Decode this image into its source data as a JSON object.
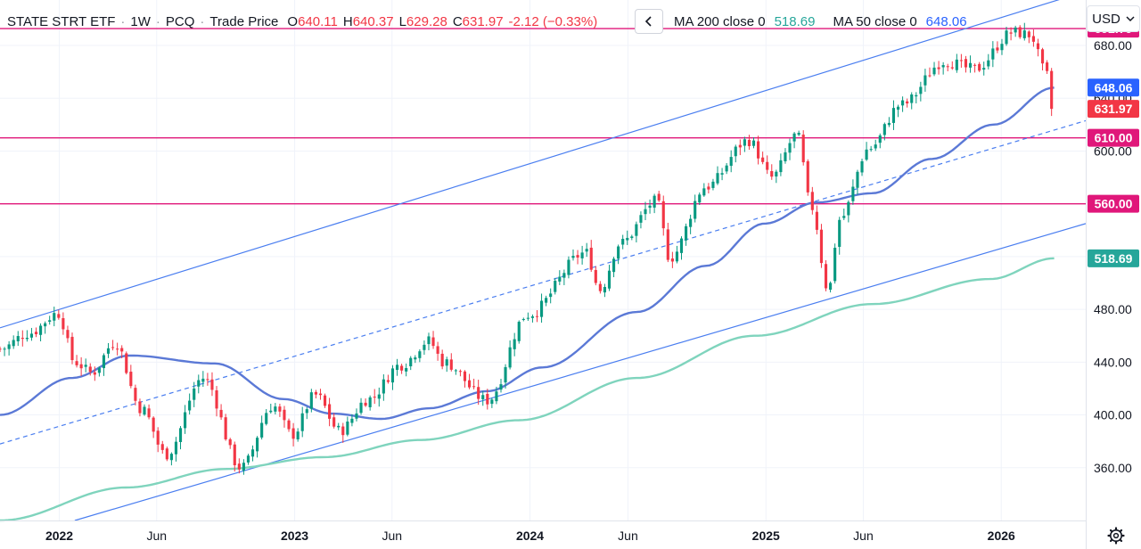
{
  "header": {
    "symbol": "STATE STRT ETF",
    "interval": "1W",
    "exchange": "PCQ",
    "price_type": "Trade Price",
    "sep": "·",
    "o_label": "O",
    "o_value": "640.11",
    "h_label": "H",
    "h_value": "640.37",
    "l_label": "L",
    "l_value": "629.28",
    "c_label": "C",
    "c_value": "631.97",
    "change": "-2.12 (−0.33%)"
  },
  "indicators": {
    "collapse_icon": "chevron-left-icon",
    "ma200_label": "MA 200 close 0",
    "ma200_value": "518.69",
    "ma50_label": "MA 50 close 0",
    "ma50_value": "648.06"
  },
  "currency": {
    "label": "USD",
    "icon": "chevron-down-icon"
  },
  "settings_icon": "gear-icon",
  "colors": {
    "up": "#089981",
    "down": "#f23645",
    "ma50": "#5b79d6",
    "ma200": "#7fd4bd",
    "hline": "#e0177a",
    "trend": "#4a7ef0",
    "grid": "#f0f3fa",
    "axis_text": "#131722"
  },
  "chart_data": {
    "type": "candlestick",
    "interval": "weekly",
    "ylim": [
      320,
      705
    ],
    "xlim": [
      "2021-10-01",
      "2026-05-12"
    ],
    "y_ticks": [
      "360.00",
      "400.00",
      "440.00",
      "480.00",
      "520.00",
      "560.00",
      "600.00",
      "640.00",
      "680.00"
    ],
    "x_ticks": [
      {
        "date": "2022-01-01",
        "label": "2022",
        "bold": true
      },
      {
        "date": "2022-06-01",
        "label": "Jun",
        "bold": false
      },
      {
        "date": "2023-01-01",
        "label": "2023",
        "bold": true
      },
      {
        "date": "2023-06-01",
        "label": "Jun",
        "bold": false
      },
      {
        "date": "2024-01-01",
        "label": "2024",
        "bold": true
      },
      {
        "date": "2024-06-01",
        "label": "Jun",
        "bold": false
      },
      {
        "date": "2025-01-01",
        "label": "2025",
        "bold": true
      },
      {
        "date": "2025-06-01",
        "label": "Jun",
        "bold": false
      },
      {
        "date": "2026-01-01",
        "label": "2026",
        "bold": true
      }
    ],
    "price_anchors": [
      {
        "date": "2021-10-01",
        "close": 450
      },
      {
        "date": "2021-11-15",
        "close": 462
      },
      {
        "date": "2021-12-30",
        "close": 477
      },
      {
        "date": "2022-01-25",
        "close": 440
      },
      {
        "date": "2022-02-20",
        "close": 432
      },
      {
        "date": "2022-03-28",
        "close": 455
      },
      {
        "date": "2022-05-08",
        "close": 405
      },
      {
        "date": "2022-06-15",
        "close": 370
      },
      {
        "date": "2022-08-12",
        "close": 428
      },
      {
        "date": "2022-10-10",
        "close": 360
      },
      {
        "date": "2022-11-28",
        "close": 407
      },
      {
        "date": "2022-12-28",
        "close": 385
      },
      {
        "date": "2023-02-02",
        "close": 415
      },
      {
        "date": "2023-03-12",
        "close": 388
      },
      {
        "date": "2023-04-25",
        "close": 412
      },
      {
        "date": "2023-06-15",
        "close": 438
      },
      {
        "date": "2023-07-28",
        "close": 456
      },
      {
        "date": "2023-08-20",
        "close": 440
      },
      {
        "date": "2023-10-27",
        "close": 411
      },
      {
        "date": "2023-12-28",
        "close": 476
      },
      {
        "date": "2024-03-28",
        "close": 523
      },
      {
        "date": "2024-04-18",
        "close": 495
      },
      {
        "date": "2024-05-20",
        "close": 530
      },
      {
        "date": "2024-07-15",
        "close": 562
      },
      {
        "date": "2024-08-05",
        "close": 519
      },
      {
        "date": "2024-09-30",
        "close": 573
      },
      {
        "date": "2024-12-05",
        "close": 608
      },
      {
        "date": "2025-01-10",
        "close": 580
      },
      {
        "date": "2025-02-18",
        "close": 612
      },
      {
        "date": "2025-03-12",
        "close": 558
      },
      {
        "date": "2025-04-08",
        "close": 495
      },
      {
        "date": "2025-04-25",
        "close": 548
      },
      {
        "date": "2025-06-10",
        "close": 602
      },
      {
        "date": "2025-07-30",
        "close": 635
      },
      {
        "date": "2025-10-05",
        "close": 668
      },
      {
        "date": "2025-11-20",
        "close": 662
      },
      {
        "date": "2026-01-20",
        "close": 690
      },
      {
        "date": "2026-02-15",
        "close": 688
      },
      {
        "date": "2026-03-10",
        "close": 660
      },
      {
        "date": "2026-03-24",
        "close": 631.97
      }
    ],
    "ma50_anchors": [
      {
        "date": "2021-10-01",
        "value": 400
      },
      {
        "date": "2022-01-20",
        "value": 428
      },
      {
        "date": "2022-04-20",
        "value": 445
      },
      {
        "date": "2022-08-30",
        "value": 439
      },
      {
        "date": "2022-12-15",
        "value": 412
      },
      {
        "date": "2023-02-28",
        "value": 401
      },
      {
        "date": "2023-05-15",
        "value": 397
      },
      {
        "date": "2023-07-28",
        "value": 405
      },
      {
        "date": "2023-10-27",
        "value": 418
      },
      {
        "date": "2024-01-20",
        "value": 436
      },
      {
        "date": "2024-06-15",
        "value": 478
      },
      {
        "date": "2024-09-30",
        "value": 513
      },
      {
        "date": "2024-12-30",
        "value": 545
      },
      {
        "date": "2025-03-20",
        "value": 561
      },
      {
        "date": "2025-06-15",
        "value": 568
      },
      {
        "date": "2025-09-15",
        "value": 594
      },
      {
        "date": "2025-12-20",
        "value": 620
      },
      {
        "date": "2026-03-24",
        "value": 648.06
      }
    ],
    "ma200_anchors": [
      {
        "date": "2021-10-01",
        "value": 320
      },
      {
        "date": "2022-04-15",
        "value": 345
      },
      {
        "date": "2022-09-15",
        "value": 359
      },
      {
        "date": "2023-02-15",
        "value": 368
      },
      {
        "date": "2023-07-15",
        "value": 381
      },
      {
        "date": "2023-12-15",
        "value": 396
      },
      {
        "date": "2024-06-15",
        "value": 428
      },
      {
        "date": "2024-12-15",
        "value": 460
      },
      {
        "date": "2025-06-15",
        "value": 484
      },
      {
        "date": "2025-12-15",
        "value": 503
      },
      {
        "date": "2026-03-24",
        "value": 518.69
      }
    ],
    "last_price": 631.97,
    "ma50_last": 648.06,
    "ma200_last": 518.69,
    "horizontal_lines": [
      692.79,
      610.0,
      560.0
    ],
    "price_labels": [
      {
        "value": 692.79,
        "text": "692.79",
        "color": "#e0177a"
      },
      {
        "value": 648.06,
        "text": "648.06",
        "color": "#2962ff"
      },
      {
        "value": 631.97,
        "text": "631.97",
        "color": "#f23645"
      },
      {
        "value": 610.0,
        "text": "610.00",
        "color": "#e0177a"
      },
      {
        "value": 560.0,
        "text": "560.00",
        "color": "#e0177a"
      },
      {
        "value": 518.69,
        "text": "518.69",
        "color": "#26a69a"
      }
    ],
    "trend_lines": [
      {
        "name": "upper-channel",
        "dashed": false,
        "p1": {
          "date": "2021-10-01",
          "value": 466
        },
        "p2": {
          "date": "2026-05-12",
          "value": 721
        }
      },
      {
        "name": "lower-channel",
        "dashed": false,
        "p1": {
          "date": "2022-01-25",
          "value": 320
        },
        "p2": {
          "date": "2026-05-12",
          "value": 545
        }
      },
      {
        "name": "mid-channel",
        "dashed": true,
        "p1": {
          "date": "2021-10-01",
          "value": 378
        },
        "p2": {
          "date": "2026-05-12",
          "value": 623
        }
      }
    ]
  }
}
